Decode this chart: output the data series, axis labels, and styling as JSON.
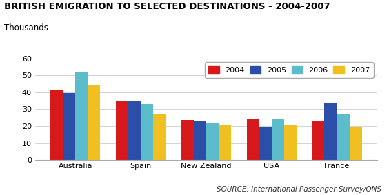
{
  "title": "BRITISH EMIGRATION TO SELECTED DESTINATIONS - 2004-2007",
  "ylabel": "Thousands",
  "source": "SOURCE: International Passenger Survey/ONS",
  "categories": [
    "Australia",
    "Spain",
    "New Zealand",
    "USA",
    "France"
  ],
  "years": [
    "2004",
    "2005",
    "2006",
    "2007"
  ],
  "colors": [
    "#d7191c",
    "#2b4ea8",
    "#5bbccc",
    "#f0c020"
  ],
  "values": {
    "2004": [
      41.5,
      35.0,
      23.5,
      24.0,
      23.0
    ],
    "2005": [
      39.5,
      35.0,
      23.0,
      19.0,
      34.0
    ],
    "2006": [
      52.0,
      33.0,
      21.5,
      24.5,
      27.0
    ],
    "2007": [
      44.0,
      27.5,
      20.5,
      20.5,
      19.0
    ]
  },
  "ylim": [
    0,
    60
  ],
  "yticks": [
    0,
    10,
    20,
    30,
    40,
    50,
    60
  ],
  "background_color": "#ffffff",
  "title_fontsize": 9.5,
  "ylabel_fontsize": 8.5,
  "source_fontsize": 7.5,
  "tick_fontsize": 8,
  "legend_fontsize": 8
}
